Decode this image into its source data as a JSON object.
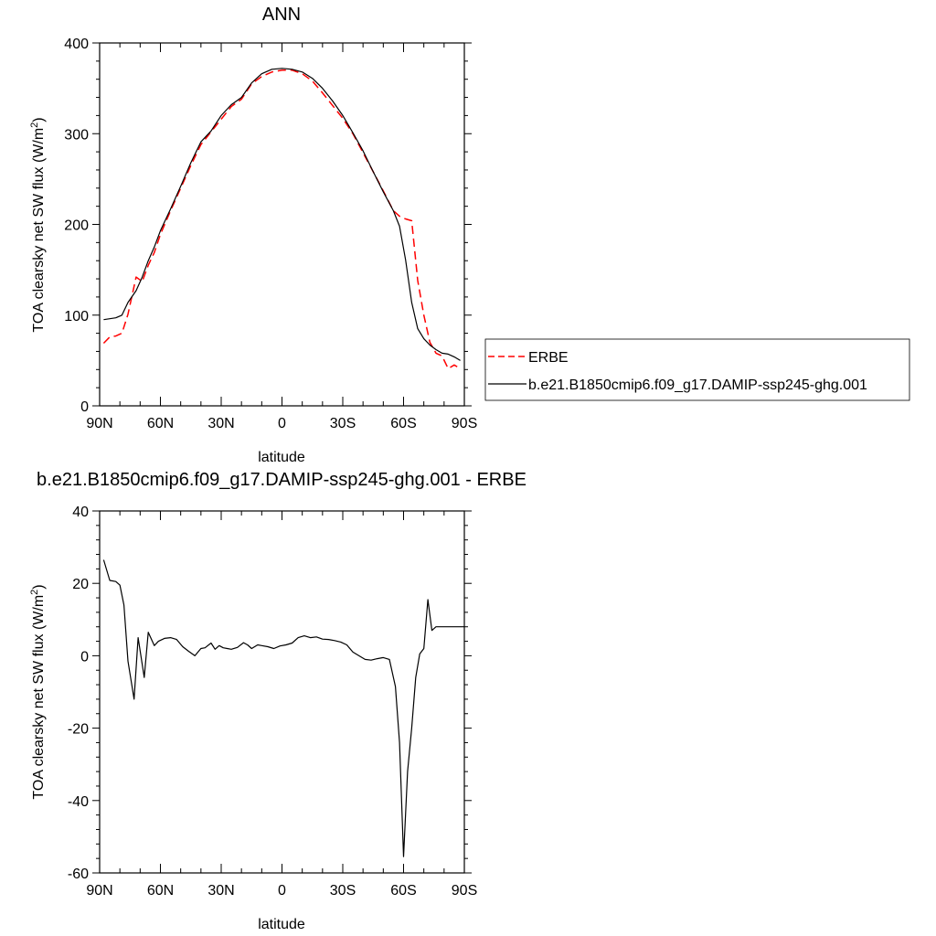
{
  "chart_data": [
    {
      "type": "line",
      "title": "ANN",
      "xlabel": "latitude",
      "ylabel_main": "TOA clearsky net SW flux (W/m",
      "ylabel_sup": "2",
      "ylabel_tail": ")",
      "xlim": [
        -90,
        90
      ],
      "ylim": [
        0,
        400
      ],
      "x_ticks": [
        -90,
        -60,
        -30,
        0,
        30,
        60,
        90
      ],
      "x_tick_labels": [
        "90N",
        "60N",
        "30N",
        "0",
        "30S",
        "60S",
        "90S"
      ],
      "y_ticks": [
        0,
        100,
        200,
        300,
        400
      ],
      "y_tick_labels": [
        "0",
        "100",
        "200",
        "300",
        "400"
      ],
      "legend_placement": "right",
      "series": [
        {
          "name": "ERBE",
          "color": "#ff0000",
          "dash": "dashed",
          "x": [
            -88,
            -85,
            -82,
            -79,
            -76,
            -72,
            -69,
            -66,
            -63,
            -60,
            -55,
            -50,
            -45,
            -40,
            -35,
            -30,
            -25,
            -20,
            -15,
            -10,
            -5,
            0,
            5,
            10,
            15,
            20,
            25,
            30,
            35,
            40,
            45,
            50,
            55,
            58,
            61,
            64,
            67,
            70,
            73,
            76,
            79,
            82,
            85,
            88
          ],
          "y": [
            69,
            76,
            77,
            80,
            101,
            142,
            137,
            155,
            169,
            189,
            215,
            240,
            265,
            288,
            302,
            316,
            330,
            338,
            355,
            363,
            368,
            370,
            370,
            366,
            358,
            345,
            331,
            317,
            300,
            279,
            258,
            237,
            215,
            209,
            206,
            204,
            138,
            100,
            70,
            58,
            55,
            41,
            45,
            41
          ]
        },
        {
          "name": "b.e21.B1850cmip6.f09_g17.DAMIP-ssp245-ghg.001",
          "color": "#000000",
          "dash": "solid",
          "x": [
            -88,
            -85,
            -82,
            -79,
            -76,
            -72,
            -69,
            -66,
            -63,
            -60,
            -55,
            -50,
            -45,
            -40,
            -35,
            -30,
            -25,
            -20,
            -15,
            -10,
            -5,
            0,
            5,
            10,
            15,
            20,
            25,
            30,
            35,
            40,
            45,
            50,
            55,
            58,
            61,
            64,
            67,
            70,
            73,
            76,
            79,
            82,
            85,
            88
          ],
          "y": [
            95,
            96,
            97,
            100,
            114,
            127,
            142,
            160,
            175,
            193,
            217,
            242,
            268,
            291,
            303,
            320,
            332,
            340,
            356,
            366,
            371,
            372,
            371,
            368,
            361,
            350,
            336,
            320,
            301,
            281,
            258,
            236,
            215,
            198,
            161,
            114,
            85,
            74,
            67,
            62,
            58,
            57,
            54,
            50
          ]
        }
      ]
    },
    {
      "type": "line",
      "title": "b.e21.B1850cmip6.f09_g17.DAMIP-ssp245-ghg.001 - ERBE",
      "xlabel": "latitude",
      "ylabel_main": "TOA clearsky net SW flux (W/m",
      "ylabel_sup": "2",
      "ylabel_tail": ")",
      "xlim": [
        -90,
        90
      ],
      "ylim": [
        -60,
        40
      ],
      "x_ticks": [
        -90,
        -60,
        -30,
        0,
        30,
        60,
        90
      ],
      "x_tick_labels": [
        "90N",
        "60N",
        "30N",
        "0",
        "30S",
        "60S",
        "90S"
      ],
      "y_ticks": [
        -60,
        -40,
        -20,
        0,
        20,
        40
      ],
      "y_tick_labels": [
        "-60",
        "-40",
        "-20",
        "0",
        "20",
        "40"
      ],
      "series": [
        {
          "color": "#000000",
          "dash": "solid",
          "x": [
            -88,
            -85,
            -82,
            -80,
            -78,
            -76,
            -73,
            -71,
            -68,
            -66,
            -63,
            -61,
            -58,
            -55,
            -52,
            -49,
            -46,
            -43,
            -40,
            -38,
            -35,
            -33,
            -31,
            -29,
            -27,
            -25,
            -22,
            -19,
            -17,
            -15,
            -12,
            -10,
            -7,
            -4,
            -1,
            2,
            5,
            8,
            11,
            14,
            17,
            20,
            23,
            26,
            29,
            32,
            35,
            38,
            41,
            44,
            47,
            50,
            53,
            56,
            58,
            60,
            62,
            64,
            66,
            68,
            70,
            72,
            74,
            76,
            78,
            80,
            82,
            84,
            86,
            88,
            90
          ],
          "y": [
            26.5,
            20.8,
            20.5,
            19.5,
            14,
            -1.5,
            -12,
            5,
            -6,
            6.5,
            2.8,
            4,
            4.8,
            5,
            4.5,
            2.5,
            1.2,
            0,
            2,
            2.2,
            3.5,
            1.8,
            2.8,
            2.2,
            2,
            1.8,
            2.3,
            3.6,
            3,
            2,
            3,
            2.8,
            2.5,
            2,
            2.7,
            3,
            3.5,
            5,
            5.5,
            5,
            5.2,
            4.6,
            4.5,
            4.2,
            3.8,
            3,
            1,
            0,
            -1,
            -1.2,
            -0.8,
            -0.5,
            -1,
            -8.5,
            -24,
            -55.5,
            -32,
            -20,
            -6,
            0.5,
            2,
            15.5,
            7,
            8,
            8,
            8,
            8,
            8,
            8,
            8,
            8
          ]
        }
      ]
    }
  ]
}
